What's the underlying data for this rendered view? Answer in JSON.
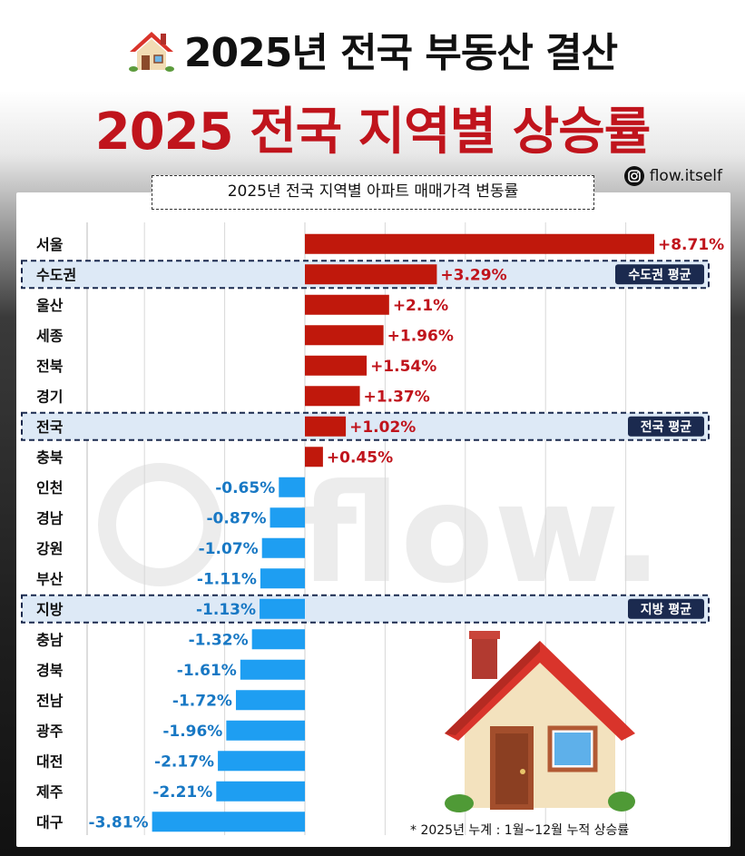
{
  "header": {
    "title": "2025년 전국 부동산 결산",
    "subtitle": "2025 전국 지역별 상승률",
    "handle": "flow.itself"
  },
  "chart_data": {
    "type": "bar",
    "orientation": "horizontal",
    "title": "2025년 전국 지역별 아파트 매매가격 변동률",
    "categories": [
      "서울",
      "수도권",
      "울산",
      "세종",
      "전북",
      "경기",
      "전국",
      "충북",
      "인천",
      "경남",
      "강원",
      "부산",
      "지방",
      "충남",
      "경북",
      "전남",
      "광주",
      "대전",
      "제주",
      "대구"
    ],
    "values": [
      8.71,
      3.29,
      2.1,
      1.96,
      1.54,
      1.37,
      1.02,
      0.45,
      -0.65,
      -0.87,
      -1.07,
      -1.11,
      -1.13,
      -1.32,
      -1.61,
      -1.72,
      -1.96,
      -2.17,
      -2.21,
      -3.81
    ],
    "value_labels": [
      "+8.71%",
      "+3.29%",
      "+2.1%",
      "+1.96%",
      "+1.54%",
      "+1.37%",
      "+1.02%",
      "+0.45%",
      "-0.65%",
      "-0.87%",
      "-1.07%",
      "-1.11%",
      "-1.13%",
      "-1.32%",
      "-1.61%",
      "-1.72%",
      "-1.96%",
      "-2.17%",
      "-2.21%",
      "-3.81%"
    ],
    "highlights": [
      {
        "category": "수도권",
        "label": "수도권 평균"
      },
      {
        "category": "전국",
        "label": "전국 평균"
      },
      {
        "category": "지방",
        "label": "지방 평균"
      }
    ],
    "xlim": [
      -4,
      9
    ],
    "grid": true,
    "colors": {
      "positive": "#c0180c",
      "negative": "#1e9ef2",
      "positive_text": "#c0141c",
      "negative_text": "#1878c4",
      "highlight_fill": "#dde9f6",
      "highlight_border": "#1b2a4f"
    }
  },
  "footnote": "* 2025년 누계 :  1월~12월 누적 상승률",
  "watermark": "flow."
}
